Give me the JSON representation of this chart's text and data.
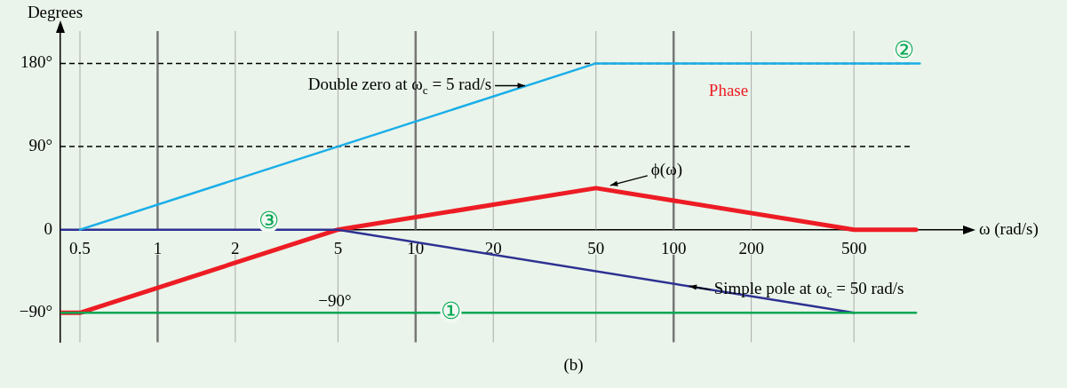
{
  "chart_data": {
    "type": "line",
    "ylabel": "Degrees",
    "xlabel": "ω (rad/s)",
    "log": "x",
    "xlim": [
      0.42,
      1345
    ],
    "ylim": [
      -122,
      215
    ],
    "xticks": [
      0.5,
      1,
      2,
      5,
      10,
      20,
      50,
      100,
      200,
      500
    ],
    "yticks": [
      {
        "value": -90,
        "label": "−90°"
      },
      0,
      {
        "value": 90,
        "label": "90°"
      },
      {
        "value": 180,
        "label": "180°"
      }
    ],
    "grid": "x",
    "series": [
      {
        "color": "#00a651",
        "x": [
          0.42,
          870
        ],
        "values": [
          -90,
          -90
        ]
      },
      {
        "color": "#1aaee8",
        "x": [
          0.5,
          50,
          900
        ],
        "values": [
          0,
          180,
          180
        ]
      },
      {
        "color": "#2e3192",
        "x": [
          0.42,
          5,
          500
        ],
        "values": [
          0,
          0,
          -90
        ]
      },
      {
        "color": "#ed1c24",
        "x": [
          0.42,
          0.5,
          5,
          50,
          500,
          870
        ],
        "values": [
          -90,
          -90,
          0,
          45,
          0,
          0
        ]
      }
    ],
    "ref_lines": [
      {
        "axis": "y",
        "value": 180,
        "color": "#000000",
        "line_style": "dashed"
      },
      {
        "axis": "y",
        "value": 90,
        "color": "#000000",
        "line_style": "dashed"
      }
    ],
    "annotations": [
      {
        "text": "Double zero at ω$_{c}$ = 5 rad/s",
        "x": 27,
        "y": 156
      },
      {
        "text": "Simple pole at ω$_{c}$ = 50 rad/s",
        "x": 113,
        "y": -61
      },
      "Phase",
      {
        "text": "ϕ(ω)",
        "x": 55,
        "y": 45
      },
      "−90°",
      {
        "text": "①",
        "x": 13.7,
        "y": -90
      },
      "②",
      "③",
      "(b)"
    ]
  }
}
